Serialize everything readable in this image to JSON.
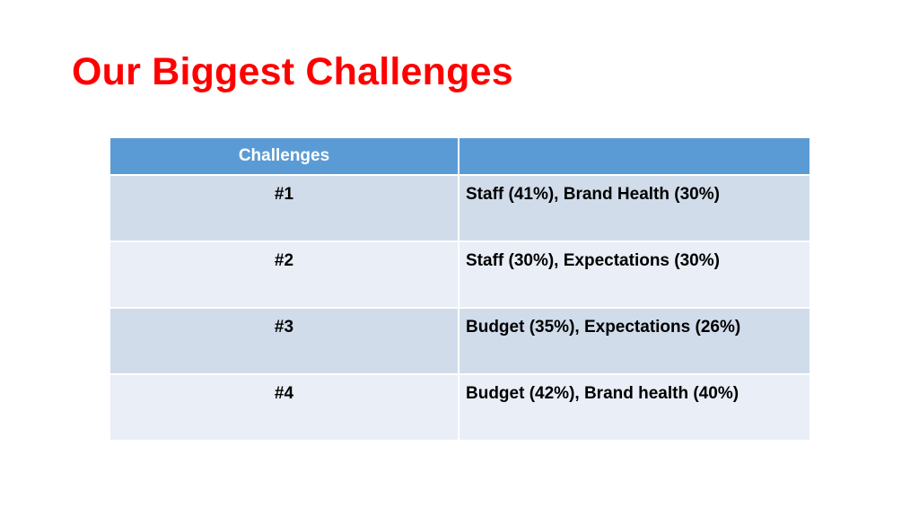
{
  "title": "Our Biggest Challenges",
  "table": {
    "header": [
      "Challenges"
    ],
    "rows": [
      [
        "#1",
        "Staff (41%), Brand Health (30%)"
      ],
      [
        "#2",
        "Staff (30%), Expectations (30%)"
      ],
      [
        "#3",
        "Budget (35%), Expectations (26%)"
      ],
      [
        "#4",
        "Budget (42%), Brand health (40%)"
      ]
    ]
  }
}
